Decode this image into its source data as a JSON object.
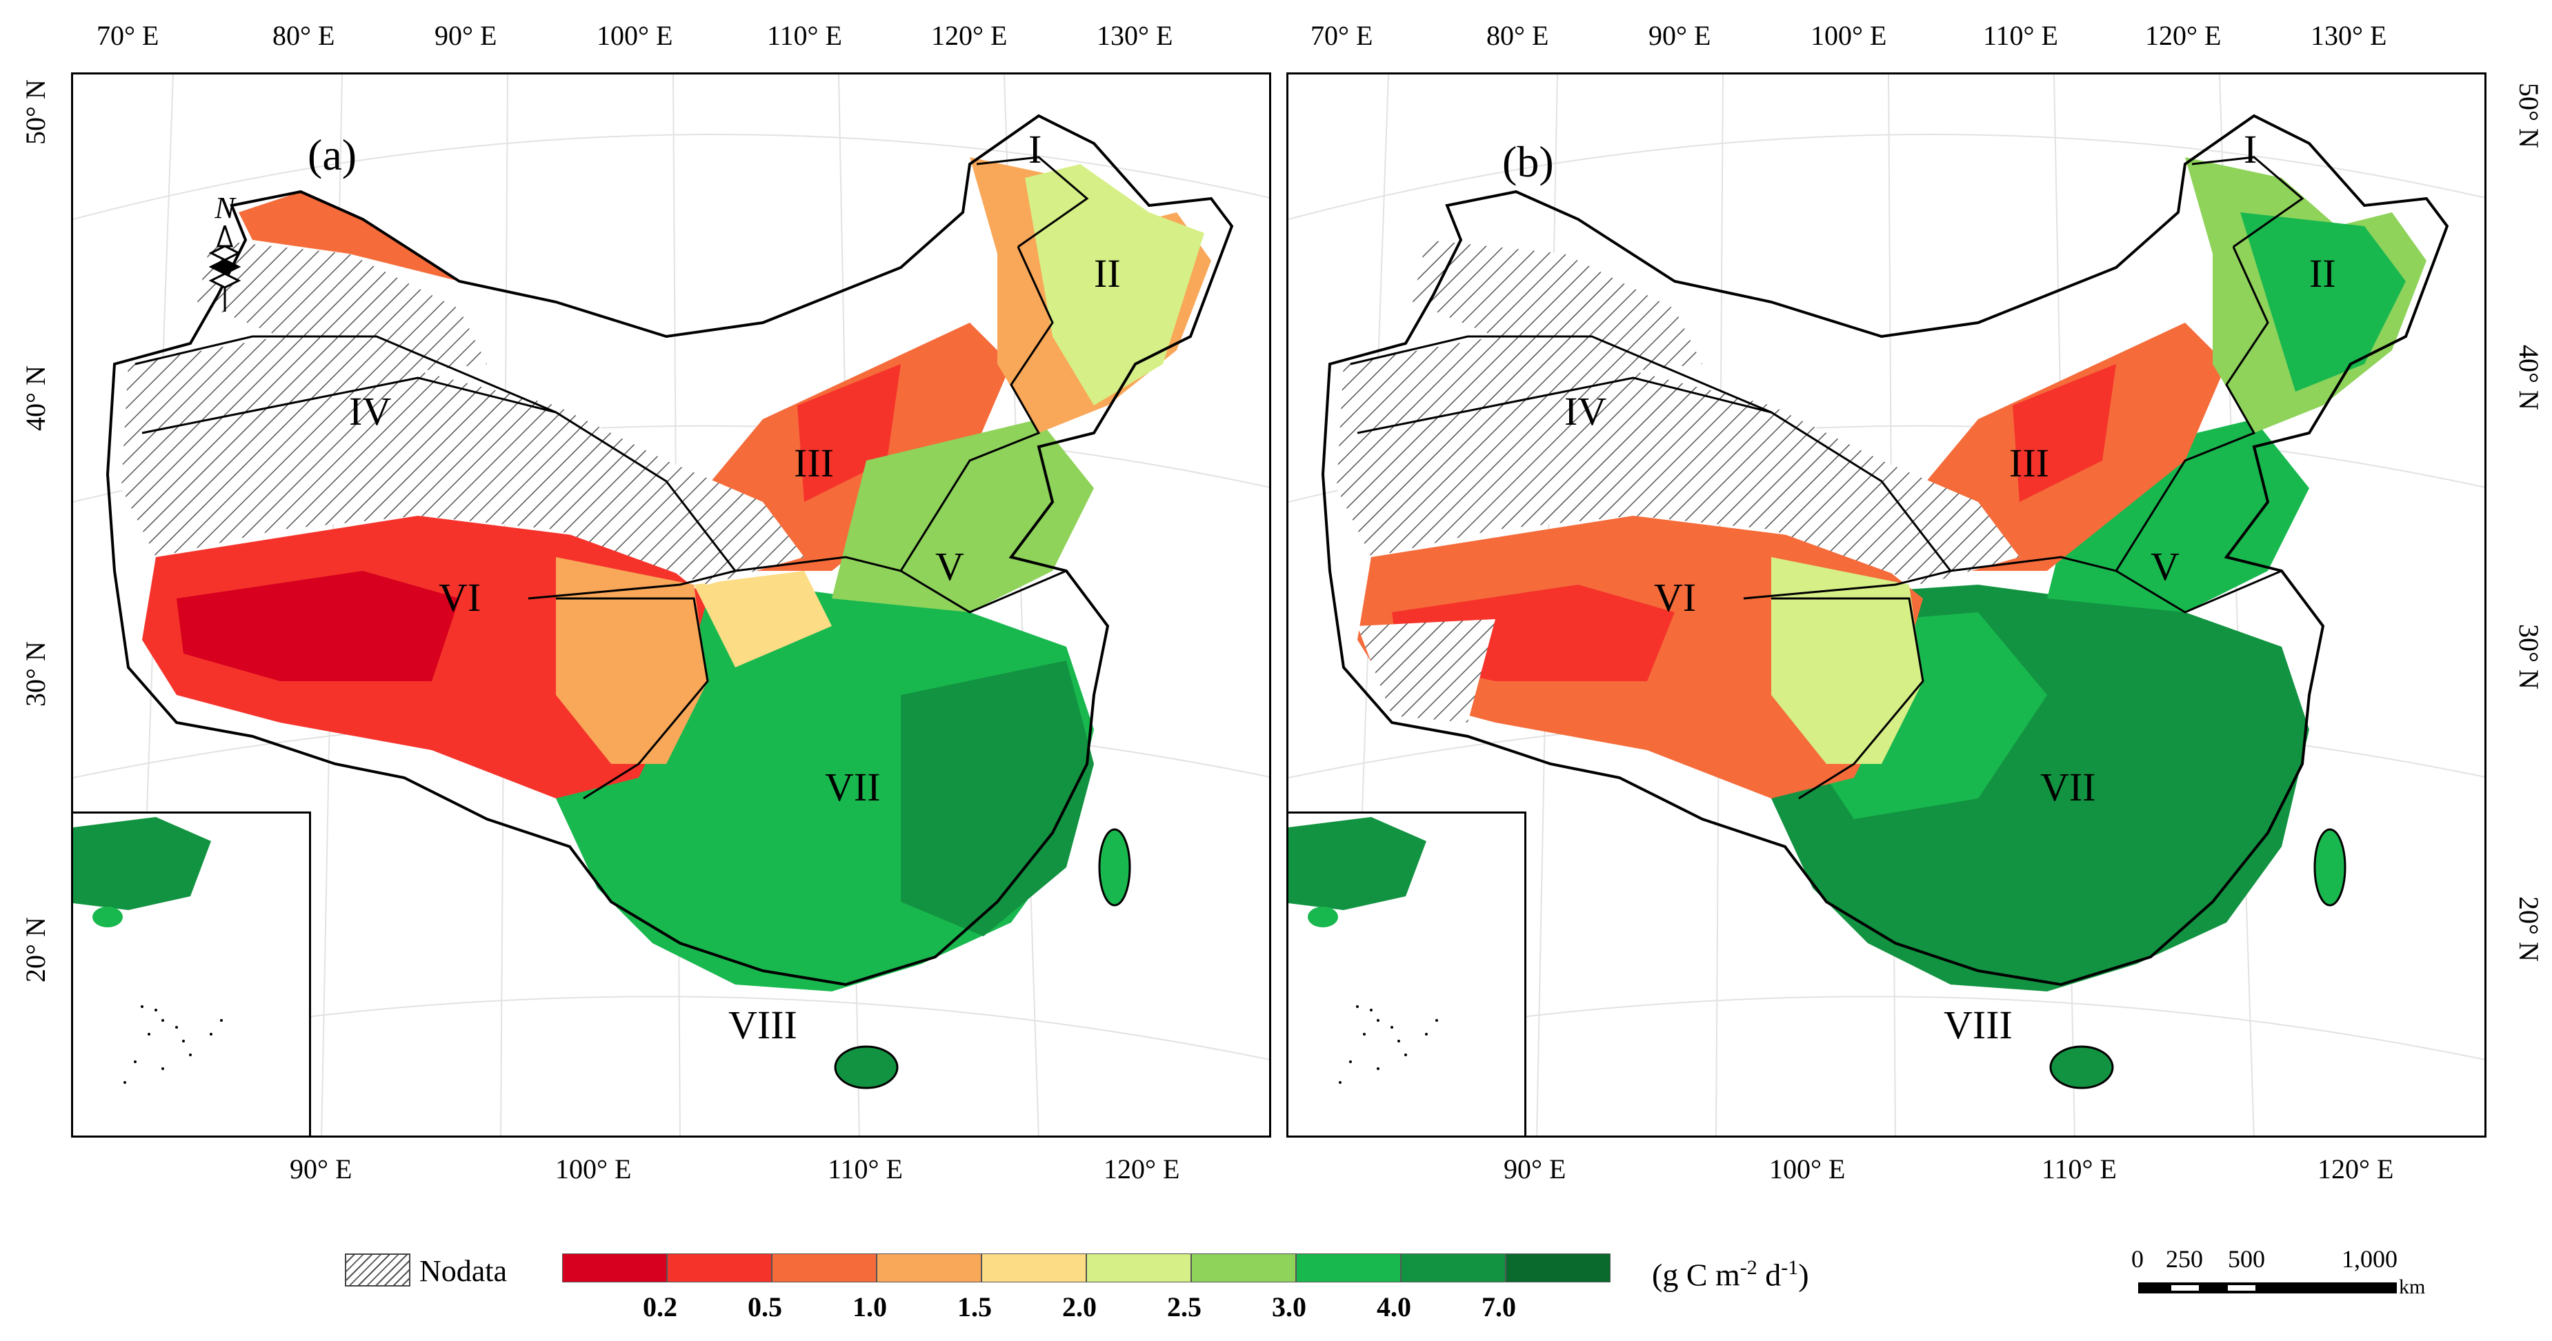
{
  "panels": [
    {
      "label": "(a)"
    },
    {
      "label": "(b)"
    }
  ],
  "regions": [
    "I",
    "II",
    "III",
    "IV",
    "V",
    "VI",
    "VII",
    "VIII"
  ],
  "axis_labels": {
    "top": [
      "70° E",
      "80° E",
      "90° E",
      "100° E",
      "110° E",
      "120° E",
      "130° E"
    ],
    "bottom": [
      "90° E",
      "100° E",
      "110° E",
      "120° E"
    ],
    "left": [
      "50° N",
      "40° N",
      "30° N",
      "20° N"
    ],
    "right": [
      "50° N",
      "40° N",
      "30° N",
      "20° N"
    ]
  },
  "north_arrow": "N",
  "legend": {
    "nodata_label": "Nodata",
    "breaks": [
      "0.2",
      "0.5",
      "1.0",
      "1.5",
      "2.0",
      "2.5",
      "3.0",
      "4.0",
      "7.0"
    ],
    "colors": [
      "#d7001e",
      "#f5332b",
      "#f56b3a",
      "#f9a758",
      "#fddc86",
      "#d6ef86",
      "#8fd35b",
      "#19b84f",
      "#129341",
      "#0a6a2d"
    ],
    "unit_prefix": "(g C m",
    "unit_exp1": "-2",
    "unit_mid": " d",
    "unit_exp2": "-1",
    "unit_suffix": ")"
  },
  "scale_bar": {
    "labels": [
      "0",
      "250",
      "500",
      "1,000"
    ],
    "unit": "km"
  }
}
